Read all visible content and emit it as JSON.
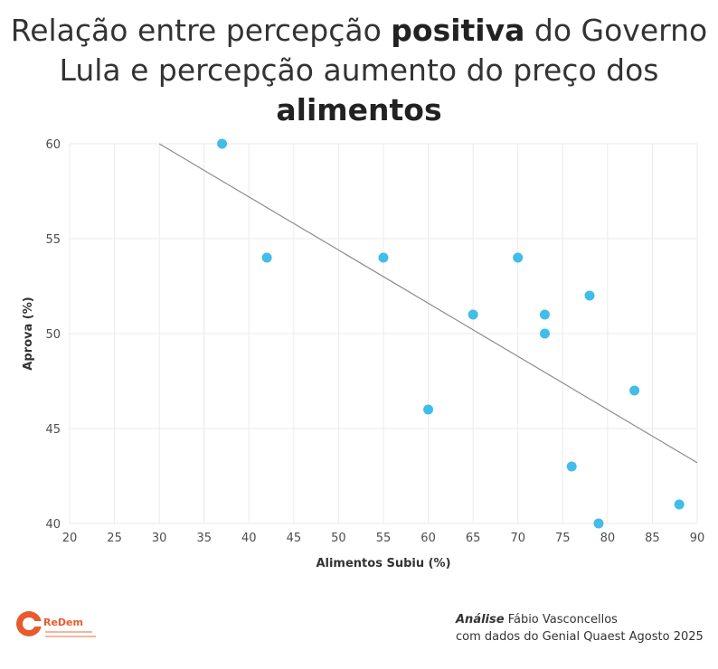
{
  "title": {
    "part1": "Relação entre percepção ",
    "bold1": "positiva",
    "part2": " do Governo Lula e percepção aumento do preço dos ",
    "bold2": "alimentos"
  },
  "chart_data": {
    "type": "scatter",
    "xlabel": "Alimentos Subiu (%)",
    "ylabel": "Aprova (%)",
    "xlim": [
      20,
      90
    ],
    "ylim": [
      40,
      60
    ],
    "xticks": [
      20,
      25,
      30,
      35,
      40,
      45,
      50,
      55,
      60,
      65,
      70,
      75,
      80,
      85,
      90
    ],
    "yticks": [
      40,
      45,
      50,
      55,
      60
    ],
    "grid": true,
    "points": [
      {
        "x": 37,
        "y": 60
      },
      {
        "x": 42,
        "y": 54
      },
      {
        "x": 55,
        "y": 54
      },
      {
        "x": 70,
        "y": 54
      },
      {
        "x": 78,
        "y": 52
      },
      {
        "x": 65,
        "y": 51
      },
      {
        "x": 73,
        "y": 51
      },
      {
        "x": 73,
        "y": 50
      },
      {
        "x": 83,
        "y": 47
      },
      {
        "x": 60,
        "y": 46
      },
      {
        "x": 76,
        "y": 43
      },
      {
        "x": 88,
        "y": 41
      },
      {
        "x": 79,
        "y": 40
      }
    ],
    "trendline": {
      "x": [
        30,
        90
      ],
      "y": [
        60,
        43.2
      ]
    },
    "colors": {
      "points": "#40bde9",
      "trendline": "#8c8c8c",
      "grid": "#ebebeb"
    }
  },
  "footer": {
    "logo_text": "ReDem",
    "credit_bold": "Análise",
    "credit_name": " Fábio Vasconcellos",
    "credit_line2": "com dados do Genial Quaest Agosto 2025"
  }
}
